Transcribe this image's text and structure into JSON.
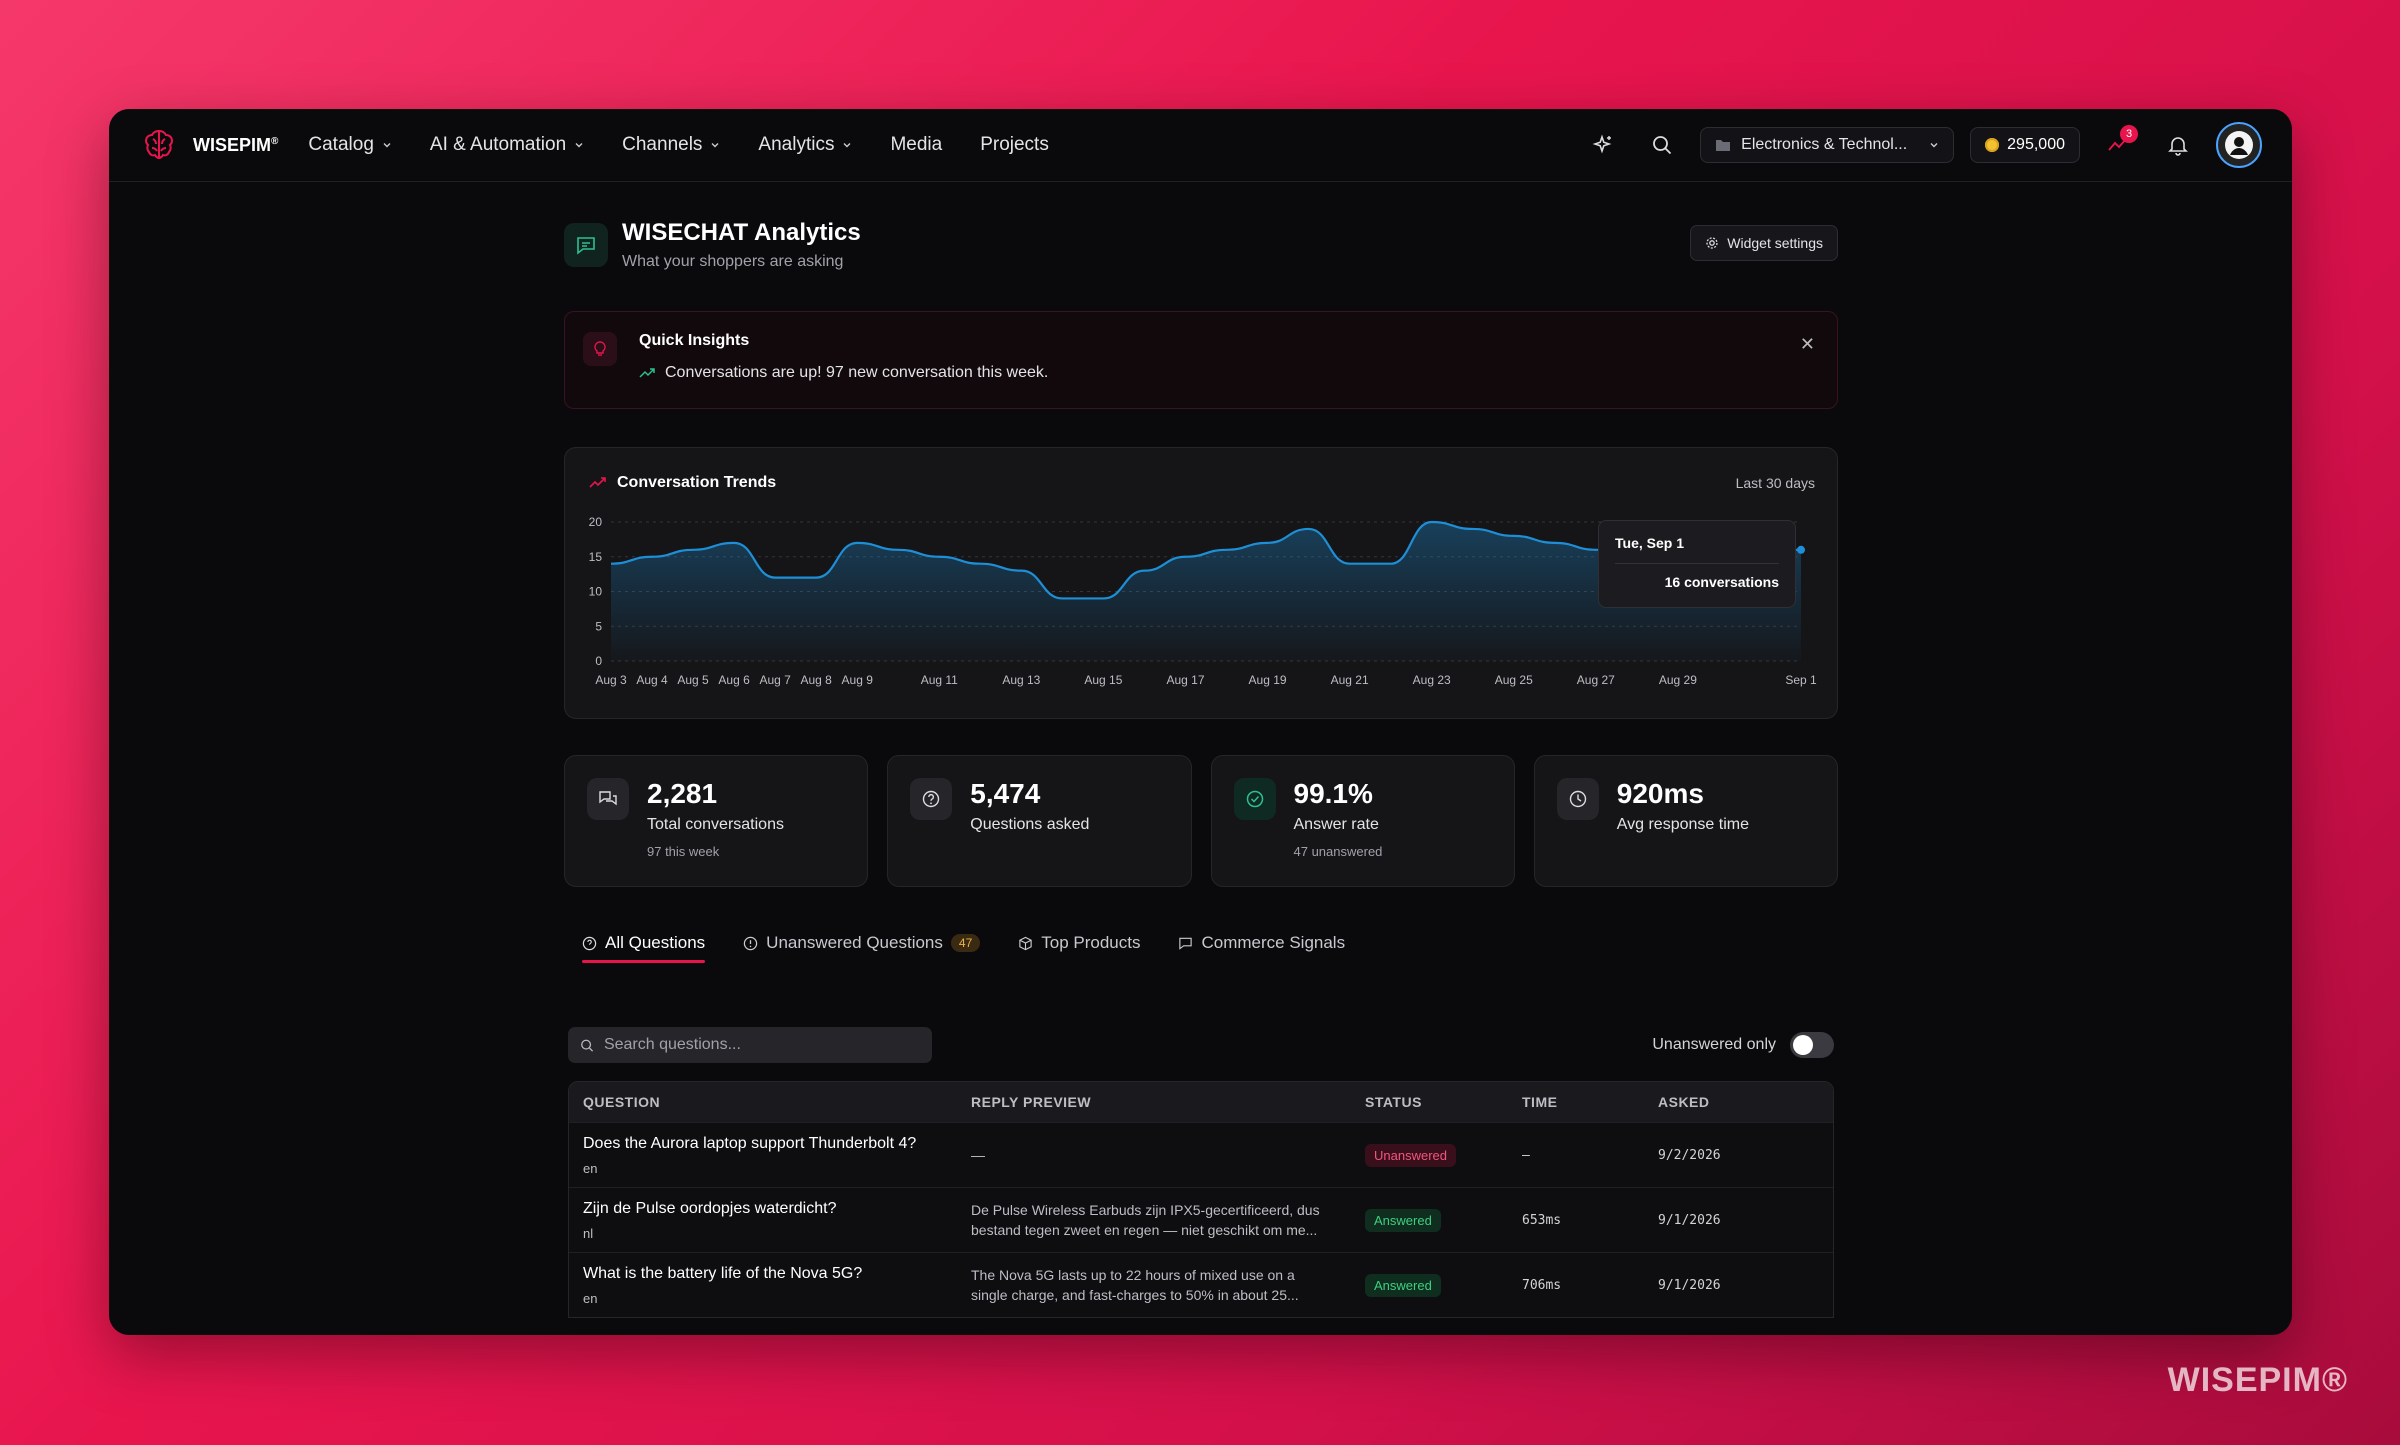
{
  "brand": {
    "name": "WISEPIM",
    "mark": "®"
  },
  "nav": {
    "items": [
      {
        "label": "Catalog",
        "dropdown": true
      },
      {
        "label": "AI & Automation",
        "dropdown": true
      },
      {
        "label": "Channels",
        "dropdown": true
      },
      {
        "label": "Analytics",
        "dropdown": true
      },
      {
        "label": "Media",
        "dropdown": false
      },
      {
        "label": "Projects",
        "dropdown": false
      }
    ],
    "workspace": "Electronics & Technol...",
    "credits": "295,000",
    "notification_count": "3"
  },
  "page": {
    "title": "WISECHAT Analytics",
    "subtitle": "What your shoppers are asking",
    "widget_settings": "Widget settings"
  },
  "insights": {
    "title": "Quick Insights",
    "message": "Conversations are up! 97 new conversation this week."
  },
  "chart": {
    "title": "Conversation Trends",
    "range": "Last 30 days",
    "tooltip_date": "Tue, Sep 1",
    "tooltip_value": "16 conversations"
  },
  "chart_data": {
    "type": "area",
    "title": "Conversation Trends",
    "x": [
      "Aug 3",
      "Aug 4",
      "Aug 5",
      "Aug 6",
      "Aug 7",
      "Aug 8",
      "Aug 9",
      "Aug 10",
      "Aug 11",
      "Aug 12",
      "Aug 13",
      "Aug 14",
      "Aug 15",
      "Aug 16",
      "Aug 17",
      "Aug 18",
      "Aug 19",
      "Aug 20",
      "Aug 21",
      "Aug 22",
      "Aug 23",
      "Aug 24",
      "Aug 25",
      "Aug 26",
      "Aug 27",
      "Aug 28",
      "Aug 29",
      "Aug 30",
      "Aug 31",
      "Sep 1"
    ],
    "x_tick_labels": [
      "Aug 3",
      "Aug 4",
      "Aug 5",
      "Aug 6",
      "Aug 7",
      "Aug 8",
      "Aug 9",
      "Aug 11",
      "Aug 13",
      "Aug 15",
      "Aug 17",
      "Aug 19",
      "Aug 21",
      "Aug 23",
      "Aug 25",
      "Aug 27",
      "Aug 29",
      "Sep 1"
    ],
    "y_ticks": [
      0,
      5,
      10,
      15,
      20
    ],
    "ylim": [
      0,
      20
    ],
    "series": [
      {
        "values": [
          14,
          15,
          16,
          17,
          12,
          12,
          17,
          16,
          15,
          14,
          13,
          9,
          9,
          13,
          15,
          16,
          17,
          19,
          14,
          14,
          20,
          19,
          18,
          17,
          16,
          15,
          15,
          16,
          16,
          16
        ]
      }
    ],
    "grid": true,
    "accent": "#1e8fd6"
  },
  "stats": [
    {
      "value": "2,281",
      "label": "Total conversations",
      "sub": "97 this week",
      "icon": "chat-bubbles-icon"
    },
    {
      "value": "5,474",
      "label": "Questions asked",
      "sub": "",
      "icon": "question-circle-icon"
    },
    {
      "value": "99.1%",
      "label": "Answer rate",
      "sub": "47 unanswered",
      "icon": "check-circle-icon"
    },
    {
      "value": "920ms",
      "label": "Avg response time",
      "sub": "",
      "icon": "clock-icon"
    }
  ],
  "tabs": [
    {
      "label": "All Questions",
      "active": true
    },
    {
      "label": "Unanswered Questions",
      "count": "47"
    },
    {
      "label": "Top Products"
    },
    {
      "label": "Commerce Signals"
    }
  ],
  "toolbar": {
    "search_placeholder": "Search questions...",
    "toggle_label": "Unanswered only"
  },
  "table": {
    "headers": [
      "QUESTION",
      "REPLY PREVIEW",
      "STATUS",
      "TIME",
      "ASKED"
    ],
    "rows": [
      {
        "question": "Does the Aurora laptop support Thunderbolt 4?",
        "lang": "en",
        "reply1": "—",
        "reply2": "",
        "status": "Unanswered",
        "time": "—",
        "asked": "9/2/2026"
      },
      {
        "question": "Zijn de Pulse oordopjes waterdicht?",
        "lang": "nl",
        "reply1": "De Pulse Wireless Earbuds zijn IPX5-gecertificeerd, dus",
        "reply2": "bestand tegen zweet en regen — niet geschikt om me...",
        "status": "Answered",
        "time": "653ms",
        "asked": "9/1/2026"
      },
      {
        "question": "What is the battery life of the Nova 5G?",
        "lang": "en",
        "reply1": "The Nova 5G lasts up to 22 hours of mixed use on a",
        "reply2": "single charge, and fast-charges to 50% in about 25...",
        "status": "Answered",
        "time": "706ms",
        "asked": "9/1/2026"
      }
    ]
  },
  "watermark": "WISEPIM®"
}
